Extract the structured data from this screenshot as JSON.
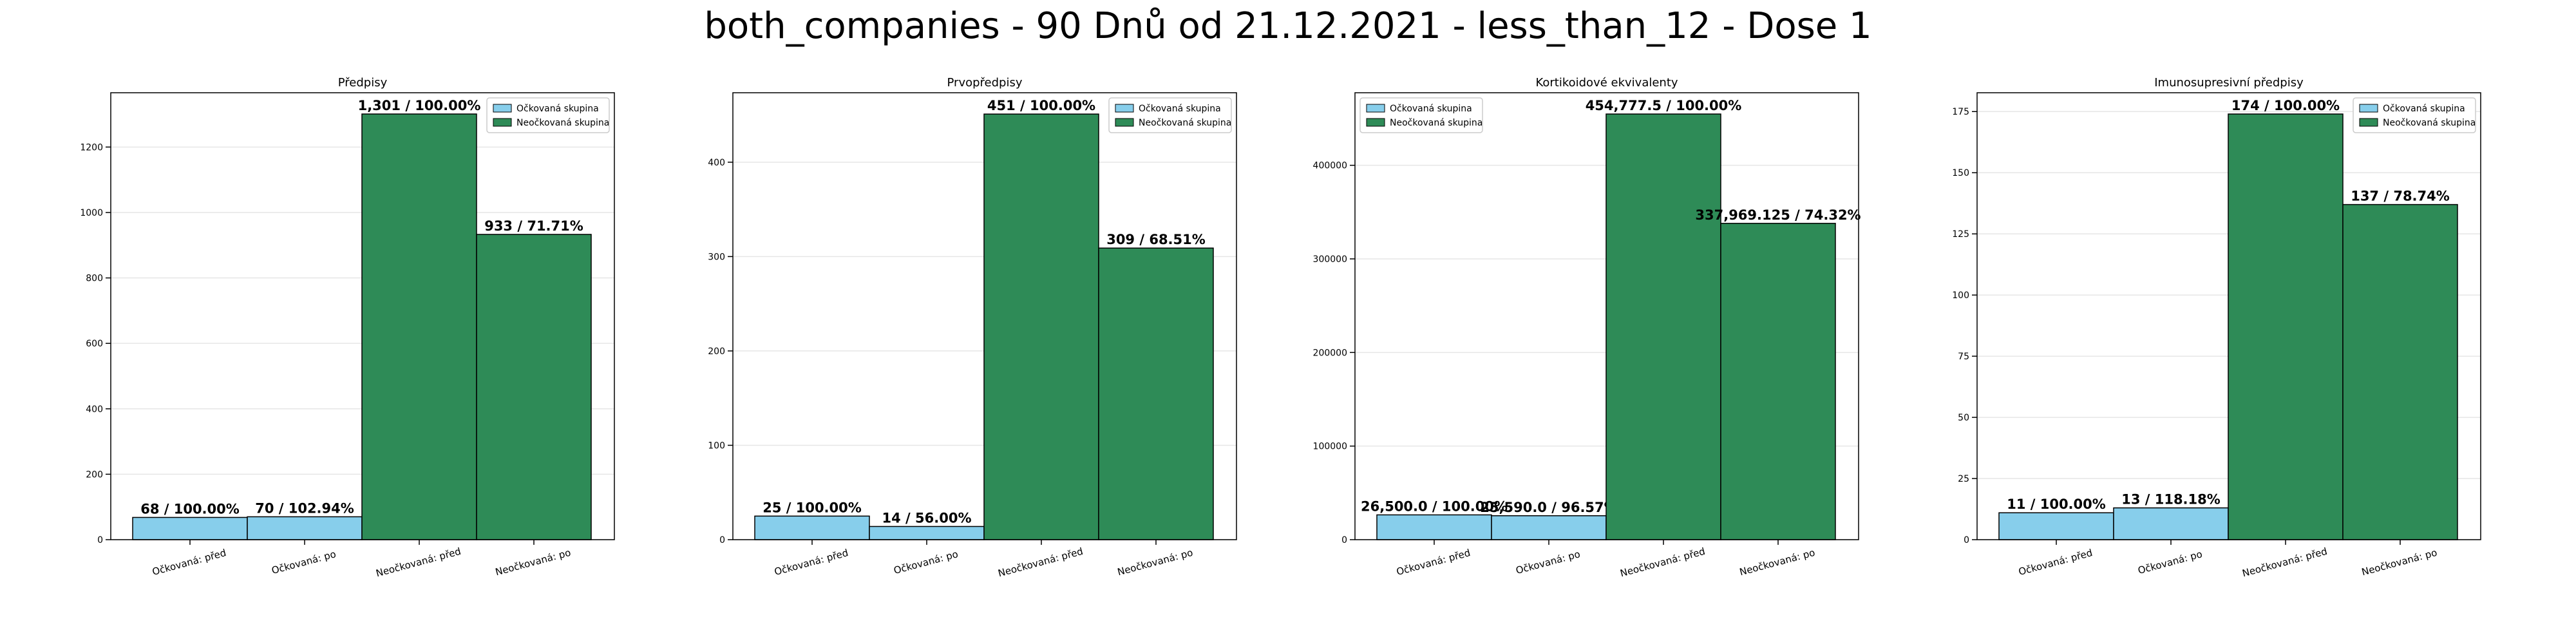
{
  "suptitle": "both_companies - 90 Dnů od 21.12.2021 - less_than_12 - Dose 1",
  "colors": {
    "vaccinated": "#87CEEB",
    "unvaccinated": "#2E8B57",
    "grid": "#e6e6e6",
    "edge": "#000000"
  },
  "legend": [
    "Očkovaná skupina",
    "Neočkovaná skupina"
  ],
  "chart_data": [
    {
      "type": "bar",
      "title": "Předpisy",
      "categories": [
        "Očkovaná: před",
        "Očkovaná: po",
        "Neočkovaná: před",
        "Neočkovaná: po"
      ],
      "values": [
        68,
        70,
        1301,
        933
      ],
      "labels": [
        "68 / 100.00%",
        "70 / 102.94%",
        "1,301 / 100.00%",
        "933 / 71.71%"
      ],
      "groups": [
        "vaccinated",
        "vaccinated",
        "unvaccinated",
        "unvaccinated"
      ],
      "yticks": [
        0,
        200,
        400,
        600,
        800,
        1000,
        1200
      ],
      "ytick_labels": [
        "0",
        "200",
        "400",
        "600",
        "800",
        "1000",
        "1200"
      ],
      "ylim": [
        0,
        1366
      ],
      "legend_position": "upper right",
      "grid": true
    },
    {
      "type": "bar",
      "title": "Prvopředpisy",
      "categories": [
        "Očkovaná: před",
        "Očkovaná: po",
        "Neočkovaná: před",
        "Neočkovaná: po"
      ],
      "values": [
        25,
        14,
        451,
        309
      ],
      "labels": [
        "25 / 100.00%",
        "14 / 56.00%",
        "451 / 100.00%",
        "309 / 68.51%"
      ],
      "groups": [
        "vaccinated",
        "vaccinated",
        "unvaccinated",
        "unvaccinated"
      ],
      "yticks": [
        0,
        100,
        200,
        300,
        400
      ],
      "ytick_labels": [
        "0",
        "100",
        "200",
        "300",
        "400"
      ],
      "ylim": [
        0,
        473.6
      ],
      "legend_position": "upper right",
      "grid": true
    },
    {
      "type": "bar",
      "title": "Kortikoidové ekvivalenty",
      "categories": [
        "Očkovaná: před",
        "Očkovaná: po",
        "Neočkovaná: před",
        "Neočkovaná: po"
      ],
      "values": [
        26500.0,
        25590.0,
        454777.5,
        337969.125
      ],
      "labels": [
        "26,500.0 / 100.00%",
        "25,590.0 / 96.57%",
        "454,777.5 / 100.00%",
        "337,969.125 / 74.32%"
      ],
      "groups": [
        "vaccinated",
        "vaccinated",
        "unvaccinated",
        "unvaccinated"
      ],
      "yticks": [
        0,
        100000,
        200000,
        300000,
        400000
      ],
      "ytick_labels": [
        "0",
        "100000",
        "200000",
        "300000",
        "400000"
      ],
      "ylim": [
        0,
        477516
      ],
      "legend_position": "upper left",
      "grid": true
    },
    {
      "type": "bar",
      "title": "Imunosupresivní předpisy",
      "categories": [
        "Očkovaná: před",
        "Očkovaná: po",
        "Neočkovaná: před",
        "Neočkovaná: po"
      ],
      "values": [
        11,
        13,
        174,
        137
      ],
      "labels": [
        "11 / 100.00%",
        "13 / 118.18%",
        "174 / 100.00%",
        "137 / 78.74%"
      ],
      "groups": [
        "vaccinated",
        "vaccinated",
        "unvaccinated",
        "unvaccinated"
      ],
      "yticks": [
        0,
        25,
        50,
        75,
        100,
        125,
        150,
        175
      ],
      "ytick_labels": [
        "0",
        "25",
        "50",
        "75",
        "100",
        "125",
        "150",
        "175"
      ],
      "ylim": [
        0,
        182.7
      ],
      "legend_position": "upper right",
      "grid": true
    }
  ]
}
